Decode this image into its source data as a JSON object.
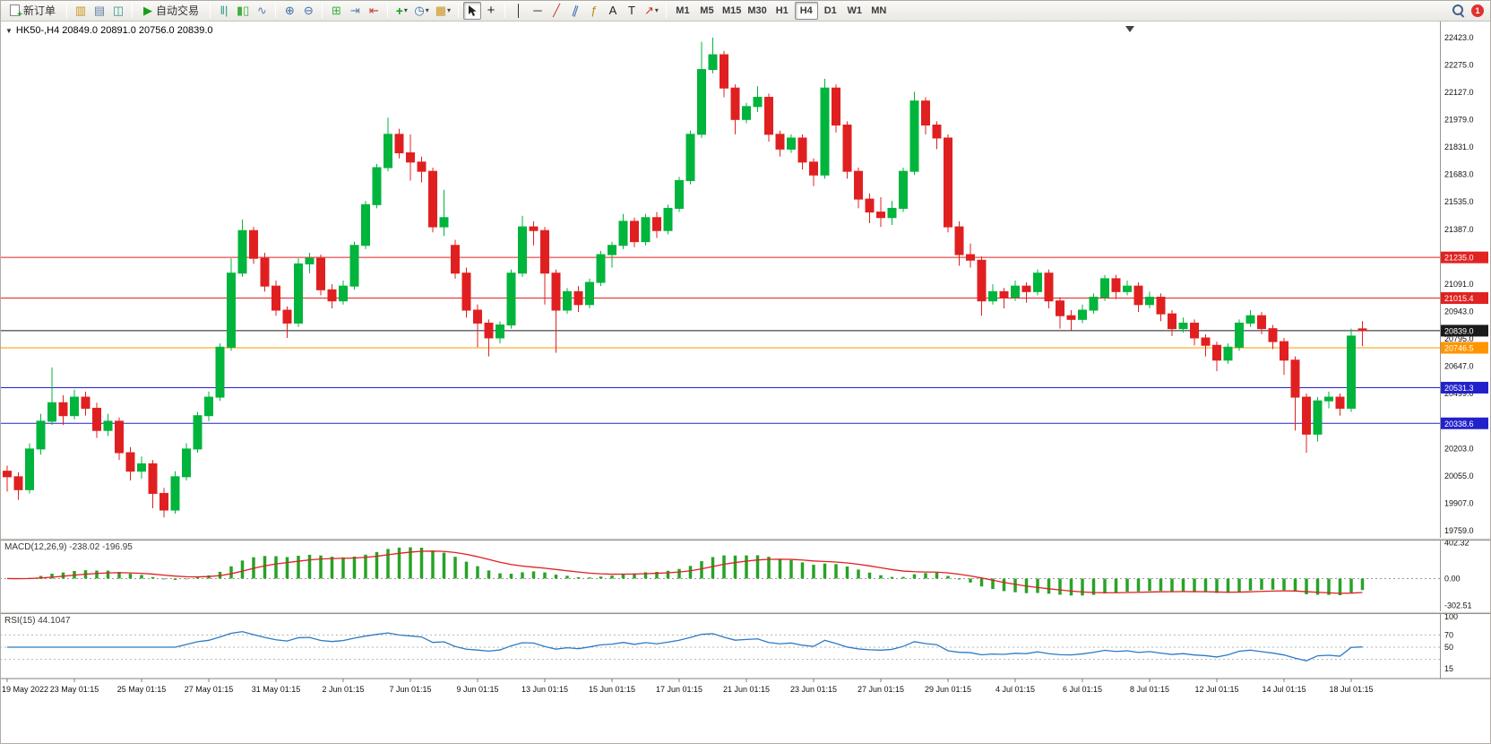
{
  "toolbar": {
    "new_order_label": "新订单",
    "auto_trading_label": "自动交易",
    "timeframes": [
      "M1",
      "M5",
      "M15",
      "M30",
      "H1",
      "H4",
      "D1",
      "W1",
      "MN"
    ],
    "active_timeframe": "H4",
    "notification_badge": "1"
  },
  "icons": {
    "plus": "+",
    "collapse": "▼",
    "dropdown": "▾",
    "charts": "▥",
    "market_watch": "▤",
    "navigator": "◫",
    "auto_trading": "▶",
    "bar_chart": "‖|",
    "candlestick_chart": "▮▯",
    "line_chart": "∿",
    "zoom_in": "⊕",
    "zoom_out": "⊖",
    "tile_windows": "⊞",
    "auto_scroll": "⇥",
    "chart_shift": "⇤",
    "indicators": "+",
    "periods": "◷",
    "templates": "▦",
    "crosshair": "+",
    "vertical_line": "│",
    "horizontal_line": "─",
    "trendline": "╱",
    "channel": "∥",
    "fibonacci": "ƒ",
    "text": "A",
    "label": "T",
    "arrows": "↗"
  },
  "chart": {
    "symbol": "HK50-",
    "period": "H4",
    "title": "HK50-,H4  20849.0 20891.0 20756.0 20839.0",
    "ohlc": {
      "open": "20849.0",
      "high": "20891.0",
      "low": "20756.0",
      "close": "20839.0"
    }
  },
  "chart_data": {
    "type": "candlestick",
    "symbol": "HK50-",
    "timeframe": "H4",
    "grid": false,
    "up_color": "#00b43c",
    "down_color": "#e02020",
    "ylim": [
      19720,
      22490
    ],
    "y_ticks": [
      22423.0,
      22275.0,
      22127.0,
      21979.0,
      21831.0,
      21683.0,
      21535.0,
      21387.0,
      21091.0,
      20943.0,
      20795.0,
      20647.0,
      20499.0,
      20203.0,
      20055.0,
      19907.0,
      19759.0
    ],
    "levels": [
      {
        "price": 21235.0,
        "color": "#e02222",
        "label": "21235.0"
      },
      {
        "price": 21015.4,
        "color": "#e02222",
        "label": "21015.4"
      },
      {
        "price": 20746.5,
        "color": "#ff9500",
        "label": "20746.5"
      },
      {
        "price": 20531.3,
        "color": "#2222cc",
        "label": "20531.3"
      },
      {
        "price": 20338.6,
        "color": "#2222cc",
        "label": "20338.6"
      }
    ],
    "current_price": {
      "value": 20839.0,
      "label": "20839.0",
      "color": "#1a1a1a"
    },
    "x_labels": [
      [
        0,
        "19 May 2022"
      ],
      [
        6,
        "23 May 01:15"
      ],
      [
        12,
        "25 May 01:15"
      ],
      [
        18,
        "27 May 01:15"
      ],
      [
        24,
        "31 May 01:15"
      ],
      [
        30,
        "2 Jun 01:15"
      ],
      [
        36,
        "7 Jun 01:15"
      ],
      [
        42,
        "9 Jun 01:15"
      ],
      [
        48,
        "13 Jun 01:15"
      ],
      [
        54,
        "15 Jun 01:15"
      ],
      [
        60,
        "17 Jun 01:15"
      ],
      [
        66,
        "21 Jun 01:15"
      ],
      [
        72,
        "23 Jun 01:15"
      ],
      [
        78,
        "27 Jun 01:15"
      ],
      [
        84,
        "29 Jun 01:15"
      ],
      [
        90,
        "4 Jul 01:15"
      ],
      [
        96,
        "6 Jul 01:15"
      ],
      [
        102,
        "8 Jul 01:15"
      ],
      [
        108,
        "12 Jul 01:15"
      ],
      [
        114,
        "14 Jul 01:15"
      ],
      [
        120,
        "18 Jul 01:15"
      ]
    ],
    "indicators": {
      "macd": {
        "label": "MACD(12,26,9)",
        "values_text": "-238.02 -196.95",
        "main_value": -238.02,
        "signal_value": -196.95,
        "params": [
          12,
          26,
          9
        ],
        "scale_max": 420,
        "scale_min": -330,
        "y_ticks": [
          {
            "value": 402.32,
            "label": "402.32"
          },
          {
            "value": 0,
            "label": "0.00"
          },
          {
            "value": -302.51,
            "label": "-302.51"
          }
        ]
      },
      "rsi": {
        "label": "RSI(15)",
        "value": "44.1047",
        "period": 15,
        "levels": [
          70,
          50,
          30
        ],
        "y_ticks": [
          {
            "value": 100,
            "label": "100"
          },
          {
            "value": 70,
            "label": "70"
          },
          {
            "value": 50,
            "label": "50"
          },
          {
            "value": 15,
            "label": "15"
          }
        ]
      }
    },
    "candles": [
      [
        20080,
        20110,
        19970,
        20050
      ],
      [
        20050,
        20075,
        19925,
        19980
      ],
      [
        19980,
        20230,
        19960,
        20200
      ],
      [
        20200,
        20390,
        20170,
        20350
      ],
      [
        20350,
        20640,
        20330,
        20450
      ],
      [
        20450,
        20490,
        20330,
        20380
      ],
      [
        20380,
        20520,
        20360,
        20480
      ],
      [
        20480,
        20510,
        20380,
        20420
      ],
      [
        20420,
        20450,
        20260,
        20300
      ],
      [
        20300,
        20390,
        20270,
        20350
      ],
      [
        20350,
        20370,
        20140,
        20180
      ],
      [
        20180,
        20210,
        20030,
        20080
      ],
      [
        20080,
        20160,
        20040,
        20120
      ],
      [
        20120,
        20140,
        19880,
        19960
      ],
      [
        19960,
        19990,
        19830,
        19870
      ],
      [
        19870,
        20080,
        19850,
        20050
      ],
      [
        20050,
        20230,
        20030,
        20200
      ],
      [
        20200,
        20400,
        20180,
        20380
      ],
      [
        20380,
        20510,
        20350,
        20480
      ],
      [
        20480,
        20770,
        20460,
        20750
      ],
      [
        20750,
        21230,
        20730,
        21150
      ],
      [
        21150,
        21440,
        21130,
        21380
      ],
      [
        21380,
        21400,
        21200,
        21230
      ],
      [
        21230,
        21260,
        21050,
        21080
      ],
      [
        21080,
        21110,
        20920,
        20950
      ],
      [
        20950,
        20970,
        20800,
        20880
      ],
      [
        20880,
        21230,
        20860,
        21200
      ],
      [
        21200,
        21260,
        21150,
        21230
      ],
      [
        21230,
        21250,
        21030,
        21060
      ],
      [
        21060,
        21090,
        20960,
        21000
      ],
      [
        21000,
        21110,
        20980,
        21080
      ],
      [
        21080,
        21320,
        21060,
        21300
      ],
      [
        21300,
        21540,
        21280,
        21520
      ],
      [
        21520,
        21740,
        21500,
        21720
      ],
      [
        21720,
        21990,
        21700,
        21900
      ],
      [
        21900,
        21930,
        21770,
        21800
      ],
      [
        21800,
        21900,
        21650,
        21750
      ],
      [
        21750,
        21780,
        21640,
        21700
      ],
      [
        21700,
        21720,
        21370,
        21400
      ],
      [
        21400,
        21600,
        21350,
        21450
      ],
      [
        21300,
        21330,
        21120,
        21150
      ],
      [
        21150,
        21180,
        20910,
        20950
      ],
      [
        20950,
        20980,
        20750,
        20880
      ],
      [
        20880,
        20900,
        20700,
        20800
      ],
      [
        20800,
        20890,
        20770,
        20870
      ],
      [
        20870,
        21170,
        20850,
        21150
      ],
      [
        21150,
        21460,
        21130,
        21400
      ],
      [
        21400,
        21430,
        21300,
        21380
      ],
      [
        21380,
        21400,
        20980,
        21150
      ],
      [
        21150,
        21170,
        20720,
        20950
      ],
      [
        20950,
        21070,
        20930,
        21050
      ],
      [
        21050,
        21080,
        20940,
        20980
      ],
      [
        20980,
        21120,
        20960,
        21100
      ],
      [
        21100,
        21270,
        21080,
        21250
      ],
      [
        21250,
        21320,
        21180,
        21300
      ],
      [
        21300,
        21470,
        21280,
        21430
      ],
      [
        21430,
        21450,
        21290,
        21320
      ],
      [
        21320,
        21470,
        21300,
        21450
      ],
      [
        21450,
        21480,
        21340,
        21380
      ],
      [
        21380,
        21520,
        21360,
        21500
      ],
      [
        21500,
        21670,
        21480,
        21650
      ],
      [
        21650,
        21920,
        21630,
        21900
      ],
      [
        21900,
        22400,
        21880,
        22250
      ],
      [
        22250,
        22423,
        22230,
        22330
      ],
      [
        22330,
        22350,
        22100,
        22150
      ],
      [
        22150,
        22170,
        21900,
        21980
      ],
      [
        21980,
        22070,
        21960,
        22050
      ],
      [
        22050,
        22160,
        22020,
        22100
      ],
      [
        22100,
        22120,
        21860,
        21900
      ],
      [
        21900,
        21920,
        21780,
        21820
      ],
      [
        21820,
        21900,
        21800,
        21880
      ],
      [
        21880,
        21900,
        21710,
        21750
      ],
      [
        21750,
        21770,
        21620,
        21680
      ],
      [
        21680,
        22200,
        21660,
        22150
      ],
      [
        22150,
        22170,
        21910,
        21950
      ],
      [
        21950,
        21970,
        21660,
        21700
      ],
      [
        21700,
        21720,
        21500,
        21550
      ],
      [
        21550,
        21580,
        21420,
        21480
      ],
      [
        21480,
        21560,
        21400,
        21450
      ],
      [
        21450,
        21540,
        21410,
        21500
      ],
      [
        21500,
        21720,
        21480,
        21700
      ],
      [
        21700,
        22130,
        21680,
        22080
      ],
      [
        22080,
        22100,
        21900,
        21950
      ],
      [
        21950,
        21970,
        21820,
        21880
      ],
      [
        21880,
        21900,
        21370,
        21400
      ],
      [
        21400,
        21430,
        21190,
        21250
      ],
      [
        21250,
        21310,
        21180,
        21220
      ],
      [
        21220,
        21240,
        20920,
        21000
      ],
      [
        21000,
        21090,
        20980,
        21050
      ],
      [
        21050,
        21070,
        20960,
        21020
      ],
      [
        21020,
        21110,
        21000,
        21080
      ],
      [
        21080,
        21100,
        20990,
        21050
      ],
      [
        21050,
        21170,
        21030,
        21150
      ],
      [
        21150,
        21170,
        20960,
        21000
      ],
      [
        21000,
        21020,
        20850,
        20920
      ],
      [
        20920,
        20950,
        20840,
        20900
      ],
      [
        20900,
        20980,
        20880,
        20950
      ],
      [
        20950,
        21040,
        20930,
        21020
      ],
      [
        21020,
        21140,
        21000,
        21120
      ],
      [
        21120,
        21140,
        21010,
        21050
      ],
      [
        21050,
        21110,
        21030,
        21080
      ],
      [
        21080,
        21100,
        20940,
        20980
      ],
      [
        20980,
        21050,
        20960,
        21020
      ],
      [
        21020,
        21040,
        20890,
        20930
      ],
      [
        20930,
        20950,
        20810,
        20850
      ],
      [
        20850,
        20910,
        20830,
        20880
      ],
      [
        20880,
        20900,
        20760,
        20800
      ],
      [
        20800,
        20820,
        20700,
        20760
      ],
      [
        20760,
        20780,
        20620,
        20680
      ],
      [
        20680,
        20770,
        20660,
        20750
      ],
      [
        20750,
        20900,
        20730,
        20880
      ],
      [
        20880,
        20950,
        20860,
        20920
      ],
      [
        20920,
        20940,
        20820,
        20850
      ],
      [
        20850,
        20870,
        20740,
        20780
      ],
      [
        20780,
        20800,
        20600,
        20680
      ],
      [
        20680,
        20700,
        20300,
        20480
      ],
      [
        20480,
        20500,
        20180,
        20280
      ],
      [
        20280,
        20480,
        20240,
        20460
      ],
      [
        20460,
        20510,
        20420,
        20480
      ],
      [
        20480,
        20500,
        20380,
        20420
      ],
      [
        20420,
        20850,
        20400,
        20810
      ],
      [
        20849,
        20891,
        20756,
        20839
      ]
    ]
  }
}
